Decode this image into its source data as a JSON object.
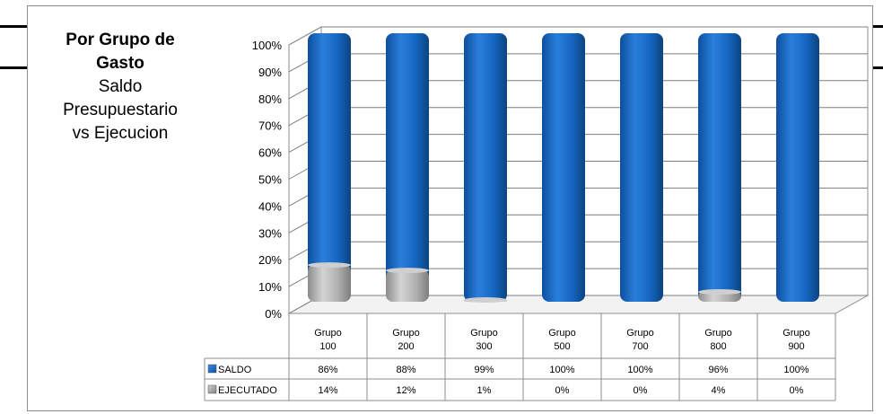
{
  "title": {
    "line1": "Por Grupo de",
    "line2": "Gasto",
    "line3": "Saldo",
    "line4": "Presupuestario",
    "line5": "vs Ejecucion"
  },
  "chart_data": {
    "type": "bar",
    "stacked": true,
    "percent_stacked": true,
    "categories": [
      [
        "Grupo",
        "100"
      ],
      [
        "Grupo",
        "200"
      ],
      [
        "Grupo",
        "300"
      ],
      [
        "Grupo",
        "500"
      ],
      [
        "Grupo",
        "700"
      ],
      [
        "Grupo",
        "800"
      ],
      [
        "Grupo",
        "900"
      ]
    ],
    "series": [
      {
        "name": "EJECUTADO",
        "values": [
          14,
          12,
          1,
          0,
          0,
          4,
          0
        ],
        "labels": [
          "14%",
          "12%",
          "1%",
          "0%",
          "0%",
          "4%",
          "0%"
        ],
        "color": "#a6a6a6"
      },
      {
        "name": "SALDO",
        "values": [
          86,
          88,
          99,
          100,
          100,
          96,
          100
        ],
        "labels": [
          "86%",
          "88%",
          "99%",
          "100%",
          "100%",
          "96%",
          "100%"
        ],
        "color": "#1565c0"
      }
    ],
    "ylim": [
      0,
      100
    ],
    "yticks": [
      "0%",
      "10%",
      "20%",
      "30%",
      "40%",
      "50%",
      "60%",
      "70%",
      "80%",
      "90%",
      "100%"
    ],
    "table_rows": [
      "SALDO",
      "EJECUTADO"
    ],
    "grid": true,
    "legend": "data-table"
  }
}
